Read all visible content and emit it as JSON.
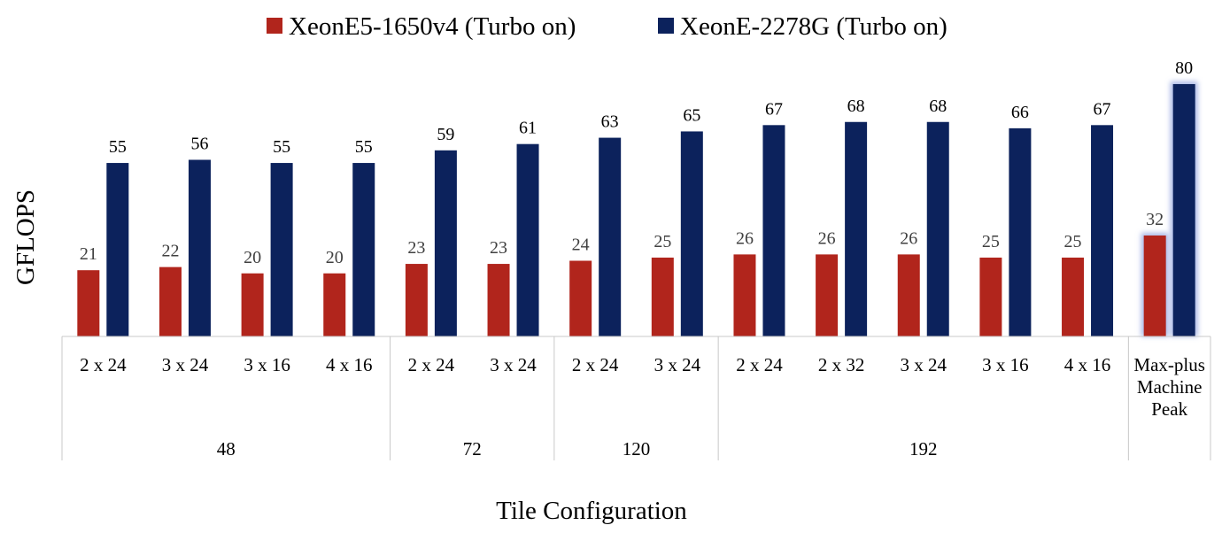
{
  "chart_data": {
    "type": "bar",
    "ylabel": "GFLOPS",
    "xlabel": "Tile Configuration",
    "ylim": [
      0,
      80
    ],
    "grid": false,
    "legend_position": "top-center",
    "colors": {
      "series1": "#b1251c",
      "series2": "#0c225c",
      "highlight": "#aab8e6"
    },
    "series": [
      {
        "name": "XeonE5-1650v4 (Turbo on)",
        "values": [
          21,
          22,
          20,
          20,
          23,
          23,
          24,
          25,
          26,
          26,
          26,
          25,
          25,
          32
        ]
      },
      {
        "name": "XeonE-2278G (Turbo on)",
        "values": [
          55,
          56,
          55,
          55,
          59,
          61,
          63,
          65,
          67,
          68,
          68,
          66,
          67,
          80
        ]
      }
    ],
    "categories": [
      "2 x 24",
      "3 x 24",
      "3 x 16",
      "4 x 16",
      "2 x 24",
      "3 x 24",
      "2 x 24",
      "3 x 24",
      "2 x 24",
      "2 x 32",
      "3 x 24",
      "3 x 16",
      "4 x 16",
      "Max-plus Machine Peak"
    ],
    "groups": [
      {
        "label": "48",
        "count": 4
      },
      {
        "label": "72",
        "count": 2
      },
      {
        "label": "120",
        "count": 2
      },
      {
        "label": "192",
        "count": 5
      },
      {
        "label": "",
        "count": 1
      }
    ],
    "highlighted_category": "Max-plus Machine Peak"
  }
}
